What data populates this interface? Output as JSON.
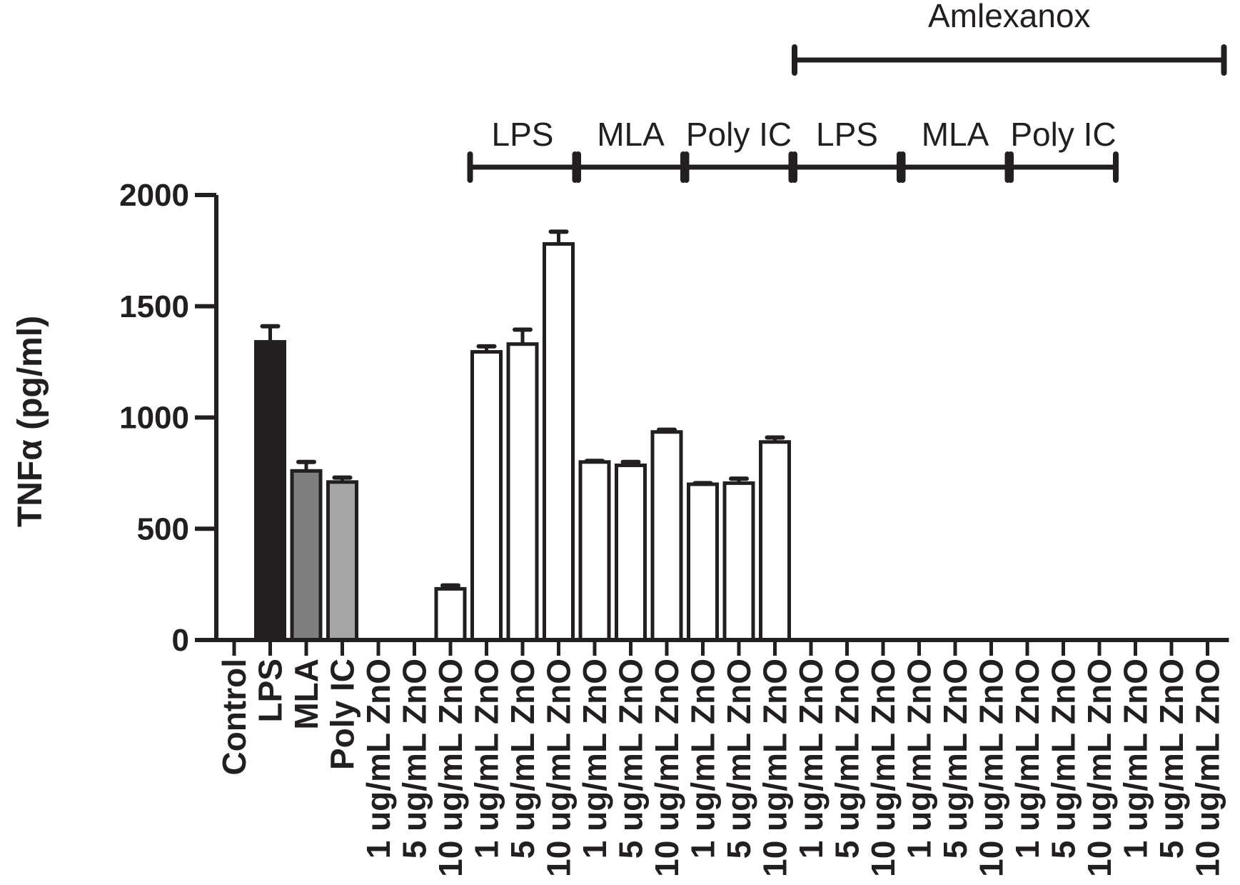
{
  "chart_data": {
    "type": "bar",
    "ylabel": "TNFα (pg/ml)",
    "ylim": [
      0,
      2000
    ],
    "yticks": [
      "0",
      "500",
      "1000",
      "1500",
      "2000"
    ],
    "grid": false,
    "legend": "none",
    "categories": [
      "Control",
      "LPS",
      "MLA",
      "Poly IC",
      "1 ug/mL ZnO",
      "5 ug/mL ZnO",
      "10 ug/mL ZnO",
      "1 ug/mL ZnO",
      "5 ug/mL ZnO",
      "10 ug/mL ZnO",
      "1 ug/mL ZnO",
      "5 ug/mL ZnO",
      "10 ug/mL ZnO",
      "1 ug/mL ZnO",
      "5 ug/mL ZnO",
      "10 ug/mL ZnO",
      "1 ug/mL ZnO",
      "5 ug/mL ZnO",
      "10 ug/mL ZnO",
      "1 ug/mL ZnO",
      "5 ug/mL ZnO",
      "10 ug/mL ZnO",
      "1 ug/mL ZnO",
      "5 ug/mL ZnO",
      "10 ug/mL ZnO",
      "1 ug/mL ZnO",
      "5 ug/mL ZnO",
      "10 ug/mL ZnO"
    ],
    "values": [
      0,
      1340,
      760,
      710,
      0,
      0,
      230,
      1295,
      1330,
      1780,
      800,
      785,
      935,
      700,
      705,
      890,
      0,
      0,
      0,
      0,
      0,
      0,
      0,
      0,
      0,
      0,
      0,
      0
    ],
    "errors": [
      0,
      70,
      40,
      20,
      0,
      0,
      15,
      25,
      65,
      55,
      5,
      15,
      10,
      5,
      20,
      20,
      0,
      0,
      0,
      0,
      0,
      0,
      0,
      0,
      0,
      0,
      0,
      0
    ],
    "bar_colors": [
      "#ffffff",
      "#231f20",
      "#7f7f7f",
      "#a6a6a6",
      "#ffffff",
      "#ffffff",
      "#ffffff",
      "#ffffff",
      "#ffffff",
      "#ffffff",
      "#ffffff",
      "#ffffff",
      "#ffffff",
      "#ffffff",
      "#ffffff",
      "#ffffff",
      "#ffffff",
      "#ffffff",
      "#ffffff",
      "#ffffff",
      "#ffffff",
      "#ffffff",
      "#ffffff",
      "#ffffff",
      "#ffffff",
      "#ffffff",
      "#ffffff",
      "#ffffff"
    ],
    "outline_color": "#231f20",
    "group_brackets": [
      {
        "label": "LPS",
        "from": 7,
        "to": 9
      },
      {
        "label": "MLA",
        "from": 10,
        "to": 12
      },
      {
        "label": "Poly IC",
        "from": 13,
        "to": 15
      },
      {
        "label": "LPS",
        "from": 16,
        "to": 18
      },
      {
        "label": "MLA",
        "from": 19,
        "to": 21
      },
      {
        "label": "Poly IC",
        "from": 22,
        "to": 24
      }
    ],
    "top_bracket": {
      "label": "Amlexanox",
      "from": 16,
      "to": 27
    }
  }
}
